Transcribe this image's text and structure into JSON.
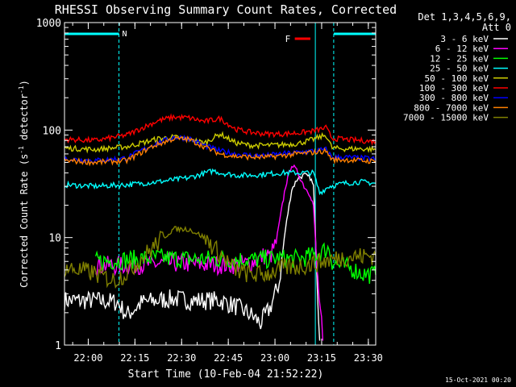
{
  "chart_data": {
    "type": "line",
    "title": "RHESSI Observing Summary Count Rates, Corrected",
    "xlabel": "Start Time (10-Feb-04 21:52:22)",
    "ylabel": "Corrected Count Rate (s⁻¹ detector⁻¹)",
    "ylabel_parts": [
      "Corrected Count Rate (s",
      "-1",
      " detector",
      "-1",
      ")"
    ],
    "yscale": "log",
    "ylim": [
      1,
      1000
    ],
    "xlim_minutes": [
      0,
      100
    ],
    "x_tick_labels": [
      "22:00",
      "22:15",
      "22:30",
      "22:45",
      "23:00",
      "23:15",
      "23:30"
    ],
    "x_tick_minutes": [
      7.63,
      22.63,
      37.63,
      52.63,
      67.63,
      82.63,
      97.63
    ],
    "y_tick_labels": [
      "1",
      "10",
      "100",
      "1000"
    ],
    "y_tick_values": [
      1,
      10,
      100,
      1000
    ],
    "legend_header": [
      "Det 1,3,4,5,6,9,",
      "Att 0"
    ],
    "legend_position": "right",
    "date_stamp": "15-Oct-2021 00:20",
    "night_intervals_minutes": [
      [
        0,
        17.5
      ],
      [
        86.5,
        100
      ]
    ],
    "night_label": "N",
    "flare_label": "F",
    "flare_interval_minutes": [
      74,
      79
    ],
    "flare_color": "#ff0000",
    "night_color": "#00ffff",
    "series": [
      {
        "name": "3 - 6 keV",
        "color": "#ffffff",
        "points": [
          [
            0,
            2.6
          ],
          [
            10,
            2.6
          ],
          [
            17,
            2.5
          ],
          [
            20,
            1.9
          ],
          [
            25,
            2.5
          ],
          [
            30,
            2.6
          ],
          [
            35,
            2.7
          ],
          [
            40,
            2.6
          ],
          [
            45,
            2.6
          ],
          [
            50,
            2.6
          ],
          [
            55,
            2.3
          ],
          [
            60,
            1.9
          ],
          [
            63,
            1.6
          ],
          [
            66,
            2.2
          ],
          [
            69,
            3.8
          ],
          [
            71,
            12
          ],
          [
            73,
            28
          ],
          [
            75,
            36
          ],
          [
            77,
            38
          ],
          [
            79,
            36
          ],
          [
            80,
            30
          ],
          [
            81,
            6
          ],
          [
            82,
            1.1
          ]
        ]
      },
      {
        "name": "6 - 12 keV",
        "color": "#ff00ff",
        "points": [
          [
            10,
            5.5
          ],
          [
            17,
            5.5
          ],
          [
            25,
            5.6
          ],
          [
            35,
            5.8
          ],
          [
            45,
            5.6
          ],
          [
            55,
            5.6
          ],
          [
            60,
            5.8
          ],
          [
            63,
            6.5
          ],
          [
            65,
            7
          ],
          [
            66,
            6.5
          ],
          [
            68,
            9
          ],
          [
            70,
            20
          ],
          [
            71,
            30
          ],
          [
            73,
            48
          ],
          [
            75,
            40
          ],
          [
            77,
            30
          ],
          [
            79,
            25
          ],
          [
            80,
            20
          ],
          [
            81,
            5.5
          ],
          [
            83,
            1.1
          ]
        ]
      },
      {
        "name": "12 - 25 keV",
        "color": "#00ff00",
        "points": [
          [
            10,
            6.0
          ],
          [
            20,
            6.2
          ],
          [
            30,
            6.5
          ],
          [
            40,
            6.3
          ],
          [
            50,
            6.3
          ],
          [
            60,
            6.2
          ],
          [
            70,
            6.4
          ],
          [
            75,
            6.3
          ],
          [
            80,
            6.8
          ],
          [
            83,
            7.5
          ],
          [
            85,
            8
          ],
          [
            86,
            6
          ],
          [
            88,
            5.5
          ],
          [
            92,
            5.2
          ],
          [
            96,
            4.6
          ],
          [
            100,
            4.5
          ]
        ]
      },
      {
        "name": "25 - 50 keV",
        "color": "#00ffff",
        "points": [
          [
            0,
            31
          ],
          [
            10,
            30
          ],
          [
            20,
            31
          ],
          [
            30,
            33
          ],
          [
            40,
            36
          ],
          [
            48,
            42
          ],
          [
            50,
            40
          ],
          [
            55,
            38
          ],
          [
            60,
            38
          ],
          [
            65,
            39
          ],
          [
            70,
            40
          ],
          [
            75,
            40
          ],
          [
            80,
            40
          ],
          [
            82,
            26
          ],
          [
            85,
            30
          ],
          [
            90,
            32
          ],
          [
            95,
            33
          ],
          [
            100,
            32
          ]
        ]
      },
      {
        "name": "50 - 100 keV",
        "color": "#cccc00",
        "points": [
          [
            0,
            68
          ],
          [
            10,
            66
          ],
          [
            20,
            70
          ],
          [
            30,
            83
          ],
          [
            35,
            86
          ],
          [
            40,
            82
          ],
          [
            45,
            76
          ],
          [
            50,
            92
          ],
          [
            55,
            76
          ],
          [
            60,
            72
          ],
          [
            65,
            72
          ],
          [
            70,
            73
          ],
          [
            75,
            75
          ],
          [
            80,
            82
          ],
          [
            84,
            90
          ],
          [
            86,
            68
          ],
          [
            90,
            67
          ],
          [
            95,
            67
          ],
          [
            100,
            66
          ]
        ]
      },
      {
        "name": "100 - 300 keV",
        "color": "#ff0000",
        "points": [
          [
            0,
            82
          ],
          [
            10,
            80
          ],
          [
            20,
            90
          ],
          [
            30,
            122
          ],
          [
            35,
            132
          ],
          [
            40,
            130
          ],
          [
            45,
            120
          ],
          [
            50,
            128
          ],
          [
            55,
            102
          ],
          [
            60,
            95
          ],
          [
            65,
            92
          ],
          [
            70,
            92
          ],
          [
            75,
            94
          ],
          [
            80,
            98
          ],
          [
            84,
            105
          ],
          [
            86,
            84
          ],
          [
            90,
            82
          ],
          [
            95,
            80
          ],
          [
            100,
            78
          ]
        ]
      },
      {
        "name": "300 - 800 keV",
        "color": "#0000ff",
        "points": [
          [
            0,
            54
          ],
          [
            10,
            52
          ],
          [
            20,
            55
          ],
          [
            28,
            72
          ],
          [
            35,
            86
          ],
          [
            40,
            84
          ],
          [
            45,
            72
          ],
          [
            50,
            64
          ],
          [
            55,
            60
          ],
          [
            60,
            58
          ],
          [
            65,
            58
          ],
          [
            70,
            60
          ],
          [
            75,
            62
          ],
          [
            80,
            64
          ],
          [
            84,
            66
          ],
          [
            86,
            56
          ],
          [
            90,
            56
          ],
          [
            95,
            55
          ],
          [
            100,
            54
          ]
        ]
      },
      {
        "name": "800 - 7000 keV",
        "color": "#ff8000",
        "points": [
          [
            0,
            52
          ],
          [
            10,
            50
          ],
          [
            20,
            52
          ],
          [
            28,
            70
          ],
          [
            35,
            83
          ],
          [
            40,
            82
          ],
          [
            45,
            70
          ],
          [
            50,
            60
          ],
          [
            55,
            57
          ],
          [
            60,
            56
          ],
          [
            65,
            56
          ],
          [
            70,
            58
          ],
          [
            75,
            60
          ],
          [
            80,
            62
          ],
          [
            84,
            64
          ],
          [
            86,
            53
          ],
          [
            90,
            53
          ],
          [
            95,
            52
          ],
          [
            100,
            51
          ]
        ]
      },
      {
        "name": "7000 - 15000 keV",
        "color": "#808000",
        "points": [
          [
            0,
            5.2
          ],
          [
            8,
            4.8
          ],
          [
            16,
            4.0
          ],
          [
            20,
            4.7
          ],
          [
            25,
            6.5
          ],
          [
            30,
            9
          ],
          [
            35,
            12
          ],
          [
            40,
            12
          ],
          [
            45,
            10
          ],
          [
            50,
            7
          ],
          [
            55,
            5
          ],
          [
            60,
            4.5
          ],
          [
            65,
            4.6
          ],
          [
            70,
            5.2
          ],
          [
            75,
            5.4
          ],
          [
            80,
            5.7
          ],
          [
            85,
            6.2
          ],
          [
            90,
            6.6
          ],
          [
            95,
            6.7
          ],
          [
            100,
            6.8
          ]
        ]
      }
    ]
  }
}
